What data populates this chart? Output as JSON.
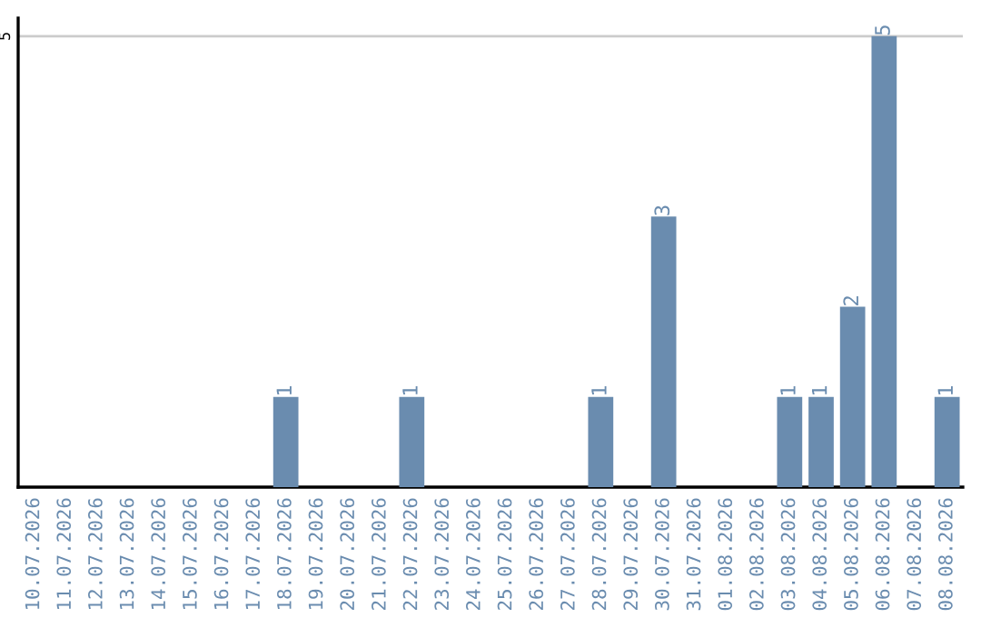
{
  "chart_data": {
    "type": "bar",
    "categories": [
      "10.07.2026",
      "11.07.2026",
      "12.07.2026",
      "13.07.2026",
      "14.07.2026",
      "15.07.2026",
      "16.07.2026",
      "17.07.2026",
      "18.07.2026",
      "19.07.2026",
      "20.07.2026",
      "21.07.2026",
      "22.07.2026",
      "23.07.2026",
      "24.07.2026",
      "25.07.2026",
      "26.07.2026",
      "27.07.2026",
      "28.07.2026",
      "29.07.2026",
      "30.07.2026",
      "31.07.2026",
      "01.08.2026",
      "02.08.2026",
      "03.08.2026",
      "04.08.2026",
      "05.08.2026",
      "06.08.2026",
      "07.08.2026",
      "08.08.2026"
    ],
    "values": [
      0,
      0,
      0,
      0,
      0,
      0,
      0,
      0,
      1,
      0,
      0,
      0,
      1,
      0,
      0,
      0,
      0,
      0,
      1,
      0,
      3,
      0,
      0,
      0,
      1,
      1,
      2,
      5,
      0,
      1
    ],
    "value_labels": [
      null,
      null,
      null,
      null,
      null,
      null,
      null,
      null,
      "1",
      null,
      null,
      null,
      "1",
      null,
      null,
      null,
      null,
      null,
      "1",
      null,
      "3",
      null,
      null,
      null,
      "1",
      "1",
      "2",
      "5",
      null,
      "1"
    ],
    "color": "#6a8caf",
    "ylim": [
      0,
      5.2
    ],
    "yticks": [
      5
    ],
    "grid": "y"
  }
}
